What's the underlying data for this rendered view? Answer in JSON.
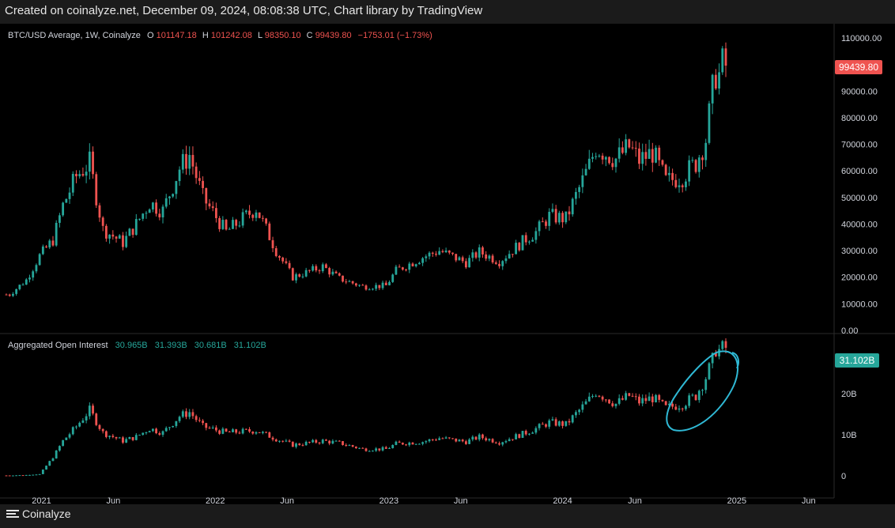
{
  "caption": "Created on coinalyze.net, December 09, 2024, 08:08:38 UTC, Chart library by TradingView",
  "footer": {
    "brand": "Coinalyze"
  },
  "price_legend": {
    "symbol": "BTC/USD Average, 1W, Coinalyze",
    "o_label": "O",
    "o_value": "101147.18",
    "h_label": "H",
    "h_value": "101242.08",
    "l_label": "L",
    "l_value": "98350.10",
    "c_label": "C",
    "c_value": "99439.80",
    "change": "−1753.01 (−1.73%)"
  },
  "oi_legend": {
    "name": "Aggregated Open Interest",
    "values": [
      "30.965B",
      "31.393B",
      "30.681B",
      "31.102B"
    ]
  },
  "colors": {
    "up": "#26a69a",
    "down": "#ef5350",
    "price_tag": "#ef5350",
    "oi_tag": "#26a69a",
    "annotation": "#2fb8d4",
    "background": "#000000"
  },
  "chart_data": [
    {
      "type": "candlestick",
      "name": "BTC/USD Average, 1W",
      "interval": "1W",
      "ylim": [
        0,
        110000
      ],
      "y_ticks": [
        "110000.00",
        "100000.00",
        "90000.00",
        "80000.00",
        "70000.00",
        "60000.00",
        "50000.00",
        "40000.00",
        "30000.00",
        "20000.00",
        "10000.00",
        "0.00"
      ],
      "last_value_label": "99439.80",
      "ohlc_last": {
        "open": 101147.18,
        "high": 101242.08,
        "low": 98350.1,
        "close": 99439.8
      },
      "x": [
        "2020-10-26",
        "2020-11-30",
        "2020-12-28",
        "2021-01-25",
        "2021-02-15",
        "2021-03-15",
        "2021-04-12",
        "2021-05-10",
        "2021-06-21",
        "2021-07-19",
        "2021-08-16",
        "2021-09-13",
        "2021-10-18",
        "2021-11-08",
        "2021-12-06",
        "2022-01-24",
        "2022-03-28",
        "2022-05-09",
        "2022-06-13",
        "2022-08-15",
        "2022-09-19",
        "2022-11-07",
        "2022-12-26",
        "2023-01-16",
        "2023-03-13",
        "2023-04-17",
        "2023-06-12",
        "2023-07-10",
        "2023-08-21",
        "2023-10-16",
        "2023-11-06",
        "2023-12-04",
        "2024-01-08",
        "2024-02-26",
        "2024-03-11",
        "2024-04-22",
        "2024-05-20",
        "2024-06-10",
        "2024-07-08",
        "2024-08-05",
        "2024-09-09",
        "2024-10-07",
        "2024-10-28",
        "2024-11-11",
        "2024-11-18",
        "2024-11-25",
        "2024-12-02",
        "2024-12-09"
      ],
      "values": [
        13500,
        19000,
        28000,
        34000,
        47000,
        58000,
        63000,
        38000,
        33000,
        40000,
        48000,
        45000,
        61000,
        66000,
        50000,
        37000,
        46000,
        30000,
        20000,
        24000,
        19500,
        16500,
        16800,
        22500,
        27500,
        30000,
        25500,
        29500,
        26000,
        34500,
        37000,
        43000,
        42000,
        62000,
        69000,
        64500,
        69000,
        64000,
        67000,
        56000,
        58000,
        63000,
        72000,
        90000,
        97000,
        96000,
        100000,
        99439.8
      ]
    },
    {
      "type": "candlestick",
      "name": "Aggregated Open Interest",
      "unit": "USD (B)",
      "ylim": [
        0,
        35
      ],
      "y_ticks": [
        "20B",
        "10B",
        "0"
      ],
      "last_value_label": "31.102B",
      "ohlc_last": {
        "open": 30.965,
        "high": 31.393,
        "low": 30.681,
        "close": 31.102
      },
      "x": [
        "2020-10-26",
        "2020-11-30",
        "2020-12-28",
        "2021-01-25",
        "2021-02-15",
        "2021-03-15",
        "2021-04-12",
        "2021-05-10",
        "2021-06-21",
        "2021-07-19",
        "2021-08-16",
        "2021-09-13",
        "2021-10-18",
        "2021-11-08",
        "2021-12-06",
        "2022-01-24",
        "2022-03-28",
        "2022-05-09",
        "2022-06-13",
        "2022-08-15",
        "2022-09-19",
        "2022-11-07",
        "2022-12-26",
        "2023-01-16",
        "2023-03-13",
        "2023-04-17",
        "2023-06-12",
        "2023-07-10",
        "2023-08-21",
        "2023-10-16",
        "2023-11-06",
        "2023-12-04",
        "2024-01-08",
        "2024-02-26",
        "2024-03-11",
        "2024-04-22",
        "2024-05-20",
        "2024-06-10",
        "2024-07-08",
        "2024-08-05",
        "2024-09-09",
        "2024-10-07",
        "2024-10-28",
        "2024-11-11",
        "2024-11-18",
        "2024-11-25",
        "2024-12-02",
        "2024-12-09"
      ],
      "values": [
        0.1,
        0.2,
        0.4,
        4.5,
        8.5,
        12.0,
        16.0,
        10.5,
        8.5,
        9.5,
        11.5,
        10.5,
        14.5,
        15.5,
        12.0,
        10.5,
        11.0,
        9.0,
        7.5,
        8.5,
        8.0,
        6.5,
        6.5,
        7.8,
        8.3,
        9.2,
        8.3,
        9.5,
        8.2,
        10.5,
        11.5,
        13.0,
        12.5,
        18.5,
        20.5,
        17.5,
        19.5,
        18.0,
        19.0,
        16.5,
        17.5,
        19.5,
        24.0,
        28.0,
        31.0,
        30.5,
        30.9,
        31.1
      ]
    }
  ],
  "time_axis_labels": [
    "2021",
    "Jun",
    "2022",
    "Jun",
    "2023",
    "Jun",
    "2024",
    "Jun",
    "2025",
    "Jun"
  ]
}
